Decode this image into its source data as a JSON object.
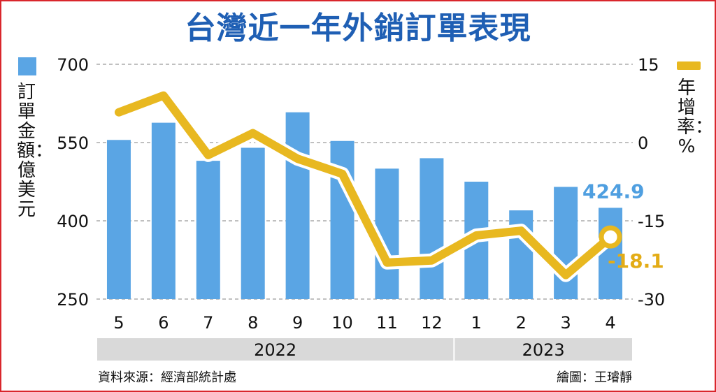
{
  "title": "台灣近一年外銷訂單表現",
  "left_axis_title": "訂單金額：億美元",
  "right_axis_title": "年增率：%",
  "source": "資料來源：經濟部統計處",
  "credit": "繪圖：王璿靜",
  "colors": {
    "bar": "#5aa5e4",
    "line": "#e8b820",
    "title": "#1f5fb4",
    "band": "#d9d9d9",
    "grid": "#9a9a9a"
  },
  "chart_data": {
    "type": "bar+line",
    "categories": [
      "5",
      "6",
      "7",
      "8",
      "9",
      "10",
      "11",
      "12",
      "1",
      "2",
      "3",
      "4"
    ],
    "year_groups": [
      {
        "label": "2022",
        "start": 0,
        "end": 7
      },
      {
        "label": "2023",
        "start": 8,
        "end": 11
      }
    ],
    "series": [
      {
        "kind": "bar",
        "axis": "left",
        "values": [
          555,
          588,
          515,
          540,
          608,
          553,
          500,
          520,
          475,
          420,
          465,
          424.9
        ]
      },
      {
        "kind": "line",
        "axis": "right",
        "values": [
          5.8,
          9.0,
          -2.4,
          1.8,
          -3.1,
          -6.0,
          -23.0,
          -22.6,
          -17.8,
          -16.9,
          -25.4,
          -18.1
        ]
      }
    ],
    "left_axis": {
      "ylim": [
        250,
        700
      ],
      "ticks": [
        250,
        400,
        550,
        700
      ]
    },
    "right_axis": {
      "ylim": [
        -30,
        15
      ],
      "ticks": [
        -30,
        -15,
        0,
        15
      ]
    },
    "annotations": {
      "last_bar": "424.9",
      "last_line": "-18.1"
    },
    "grid": true
  }
}
